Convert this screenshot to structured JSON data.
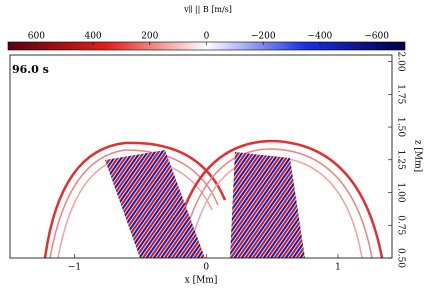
{
  "chart_data": {
    "type": "heatmap",
    "colorbar": {
      "label": "v∥ || B [m/s]",
      "lim": [
        700,
        -700
      ],
      "ticks": [
        600,
        400,
        200,
        0,
        {
          "value": -200,
          "label": "−200"
        },
        {
          "value": -400,
          "label": "−400"
        },
        {
          "value": -600,
          "label": "−600"
        }
      ],
      "colors": [
        "#5a0010",
        "#e0201c",
        "#ffffff",
        "#1a2fe0",
        "#000045"
      ]
    },
    "annotation": "96.0 s",
    "xlabel": "x [Mm]",
    "ylabel": "z [Mm]",
    "xlim": [
      -1.49,
      1.41
    ],
    "ylim": [
      0.5,
      2.05
    ],
    "xticks": [
      {
        "value": -1,
        "label": "−1"
      },
      0,
      1
    ],
    "yticks": [
      {
        "value": 0.5,
        "label": "0.50"
      },
      {
        "value": 0.75,
        "label": "0.75"
      },
      {
        "value": 1,
        "label": "1.00"
      },
      {
        "value": 1.25,
        "label": "1.25"
      },
      {
        "value": 1.5,
        "label": "1.50"
      },
      {
        "value": 1.75,
        "label": "1.75"
      },
      {
        "value": 2,
        "label": "2.00"
      }
    ]
  }
}
